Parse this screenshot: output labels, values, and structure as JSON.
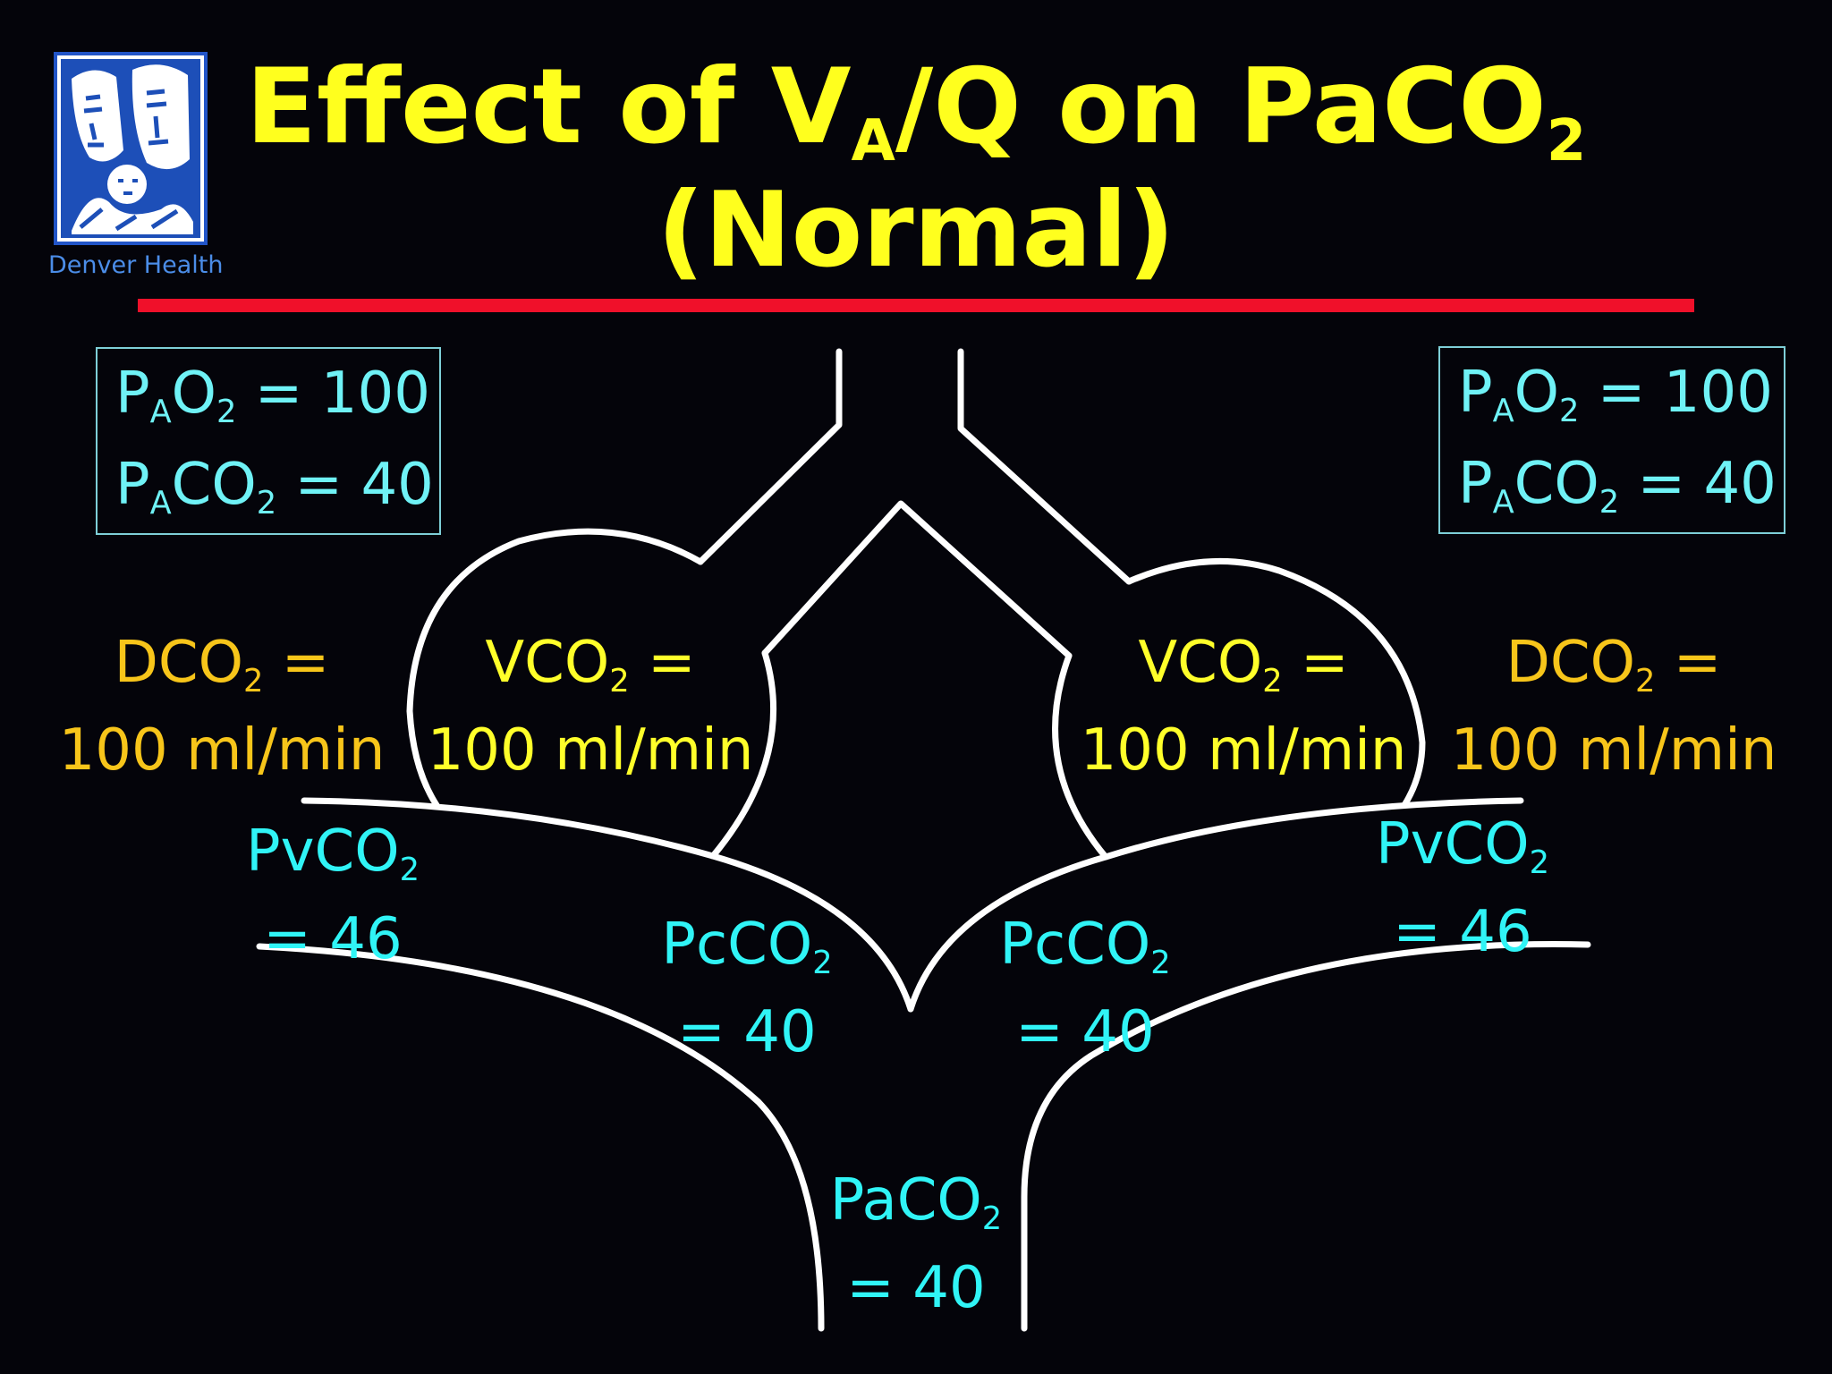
{
  "logo": {
    "icon": "denver-health-logo-icon",
    "label": "Denver Health"
  },
  "title": {
    "line1_pre": "Effect of V",
    "line1_sub_a": "A",
    "line1_mid": "/Q on PaCO",
    "line1_sub_2": "2",
    "line2": "(Normal)"
  },
  "colors": {
    "title": "#ffff1e",
    "divider": "#f0102a",
    "partial_pressure": "#30f4f6",
    "dco2": "#f7c51a",
    "vco2": "#ffff2a",
    "diagram_line": "#ffffff"
  },
  "left_box": {
    "row1": {
      "p": "P",
      "sub_a": "A",
      "o": "O",
      "sub_2": "2",
      "value": " = 100"
    },
    "row2": {
      "p": "P",
      "sub_a": "A",
      "co": "CO",
      "sub_2": "2",
      "value": " = 40"
    }
  },
  "right_box": {
    "row1": {
      "p": "P",
      "sub_a": "A",
      "o": "O",
      "sub_2": "2",
      "value": " = 100"
    },
    "row2": {
      "p": "P",
      "sub_a": "A",
      "co": "CO",
      "sub_2": "2",
      "value": " = 40"
    }
  },
  "left_dco2": {
    "name": "DCO",
    "sub": "2",
    "eq": " =",
    "value": "100 ml/min"
  },
  "right_dco2": {
    "name": "DCO",
    "sub": "2",
    "eq": " =",
    "value": "100 ml/min"
  },
  "left_vco2": {
    "name": "VCO",
    "sub": "2",
    "eq": " =",
    "value": "100 ml/min"
  },
  "right_vco2": {
    "name": "VCO",
    "sub": "2",
    "eq": " =",
    "value": "100 ml/min"
  },
  "left_pvco2": {
    "name": "PvCO",
    "sub": "2",
    "value": "= 46"
  },
  "right_pvco2": {
    "name": "PvCO",
    "sub": "2",
    "value": "= 46"
  },
  "left_pcco2": {
    "name": "PcCO",
    "sub": "2",
    "value": "= 40"
  },
  "right_pcco2": {
    "name": "PcCO",
    "sub": "2",
    "value": "= 40"
  },
  "paco2": {
    "name": "PaCO",
    "sub": "2",
    "value": "= 40"
  }
}
